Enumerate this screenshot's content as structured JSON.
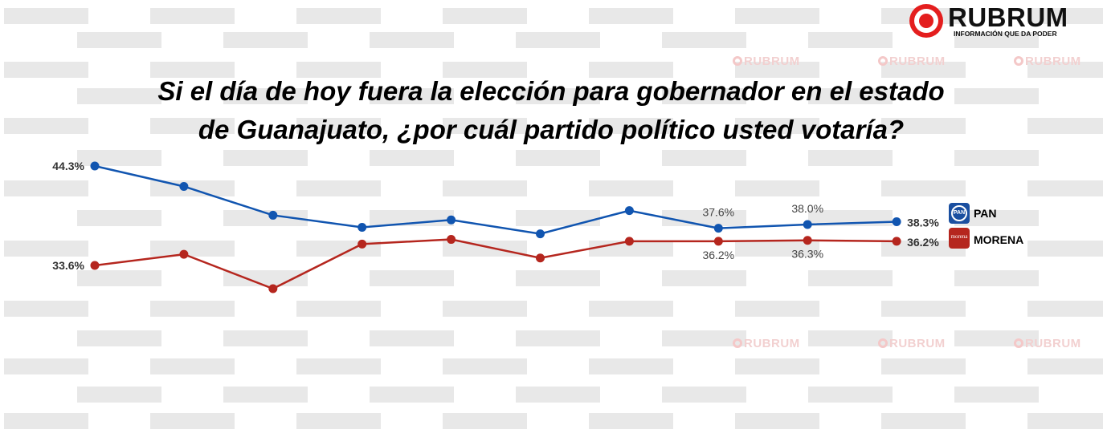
{
  "title": "Si el día de hoy fuera la elección para gobernador en el estado de Guanajuato, ¿por cuál  partido político usted votaría?",
  "title_lines": [
    "Si el día de hoy fuera la elección para gobernador en el estado",
    "de Guanajuato, ¿por cuál  partido político usted votaría?"
  ],
  "logo": {
    "name": "RUBRUM",
    "tagline": "INFORMACIÓN QUE DA PODER",
    "color": "#e41e1e"
  },
  "watermark_text": "RUBRUM",
  "chart_data": {
    "type": "line",
    "title": "Si el día de hoy fuera la elección para gobernador en el estado de Guanajuato, ¿por cuál  partido político usted votaría?",
    "x": [
      1,
      2,
      3,
      4,
      5,
      6,
      7,
      8,
      9,
      10
    ],
    "xlabel": "",
    "ylabel": "",
    "grid": false,
    "legend": "right",
    "series": [
      {
        "name": "PAN",
        "color": "#1155b0",
        "values": [
          44.3,
          42.1,
          39.0,
          37.7,
          38.5,
          37.0,
          39.5,
          37.6,
          38.0,
          38.3
        ],
        "labels": {
          "0": "44.3%",
          "7": "37.6%",
          "8": "38.0%",
          "9": "38.3%"
        },
        "badge_text": "PAN",
        "badge_color": "#1a4fa0"
      },
      {
        "name": "MORENA",
        "color": "#b5261e",
        "values": [
          33.6,
          34.8,
          31.1,
          35.9,
          36.4,
          34.4,
          36.2,
          36.2,
          36.3,
          36.2
        ],
        "labels": {
          "0": "33.6%",
          "7": "36.2%",
          "8": "36.3%",
          "9": "36.2%"
        },
        "badge_text": "morena",
        "badge_color": "#b5261e"
      }
    ]
  }
}
